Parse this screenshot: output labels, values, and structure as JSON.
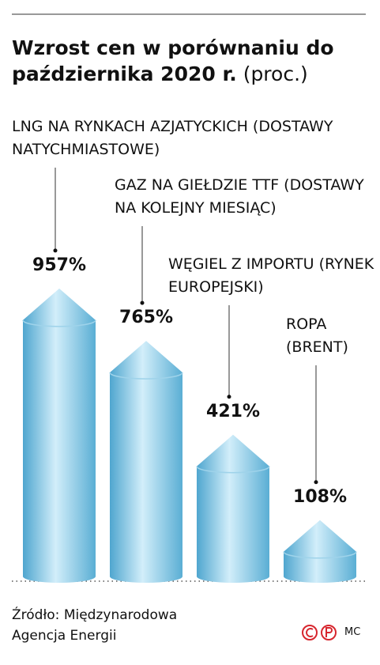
{
  "chart_data": {
    "type": "bar",
    "title": "Wzrost cen w porównaniu do października 2020 r.",
    "subtitle": "(proc.)",
    "categories": [
      "LNG NA RYNKACH AZJATYCKICH (DOSTAWY NATYCHMIASTOWE)",
      "GAZ NA GIEŁDZIE TTF (DOSTAWY NA KOLEJNY MIESIĄC)",
      "WĘGIEL Z IMPORTU (RYNEK EUROPEJSKI)",
      "ROPA (BRENT)"
    ],
    "values": [
      957,
      765,
      421,
      108
    ],
    "value_labels": [
      "957%",
      "765%",
      "421%",
      "108%"
    ],
    "color": "#7cc3e0",
    "source": "Źródło: Międzynarodowa Agencja Energii",
    "credit": "MC"
  }
}
